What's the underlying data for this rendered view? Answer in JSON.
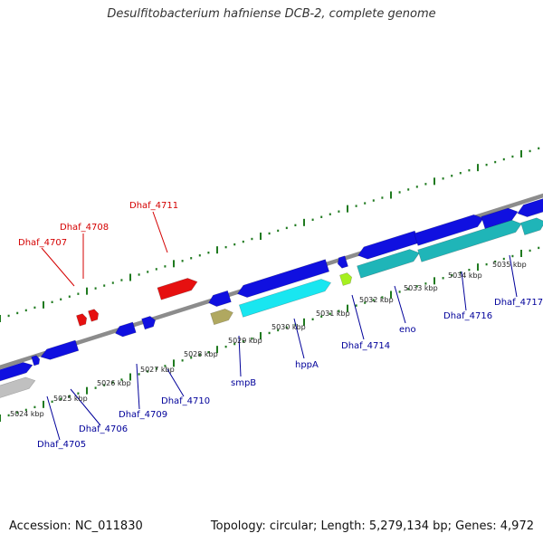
{
  "title": "Desulfitobacterium hafniense DCB-2, complete genome",
  "footer": {
    "accession": "Accession: NC_011830",
    "summary": "Topology: circular; Length: 5,279,134 bp; Genes: 4,972"
  },
  "colors": {
    "backbone": "#8c8c8c",
    "tick": "#1f7a1f",
    "highlight_label": "#d40000",
    "gene_label": "#00009a",
    "forward_cds": "#1010e0",
    "reverse_cds_cyan": "#19e6f0",
    "reverse_cds_teal": "#1fb5b8",
    "highlight_cds": "#e61010",
    "rna_lime": "#a6f020",
    "pseudo_gray": "#c0c0c0",
    "misc_khaki": "#b0a860"
  },
  "kbp_labels": [
    "5024 kbp",
    "5025 kbp",
    "5026 kbp",
    "5027 kbp",
    "5028 kbp",
    "5029 kbp",
    "5030 kbp",
    "5031 kbp",
    "5032 kbp",
    "5033 kbp",
    "5034 kbp",
    "5035 kbp"
  ],
  "gene_labels": [
    {
      "text": "Dhaf_4707",
      "kind": "highlight"
    },
    {
      "text": "Dhaf_4708",
      "kind": "highlight"
    },
    {
      "text": "Dhaf_4711",
      "kind": "highlight"
    },
    {
      "text": "Dhaf_4705",
      "kind": "gene"
    },
    {
      "text": "Dhaf_4706",
      "kind": "gene"
    },
    {
      "text": "Dhaf_4709",
      "kind": "gene"
    },
    {
      "text": "Dhaf_4710",
      "kind": "gene"
    },
    {
      "text": "smpB",
      "kind": "gene"
    },
    {
      "text": "hppA",
      "kind": "gene"
    },
    {
      "text": "Dhaf_4714",
      "kind": "gene"
    },
    {
      "text": "eno",
      "kind": "gene"
    },
    {
      "text": "Dhaf_4716",
      "kind": "gene"
    },
    {
      "text": "Dhaf_4717",
      "kind": "gene"
    }
  ]
}
